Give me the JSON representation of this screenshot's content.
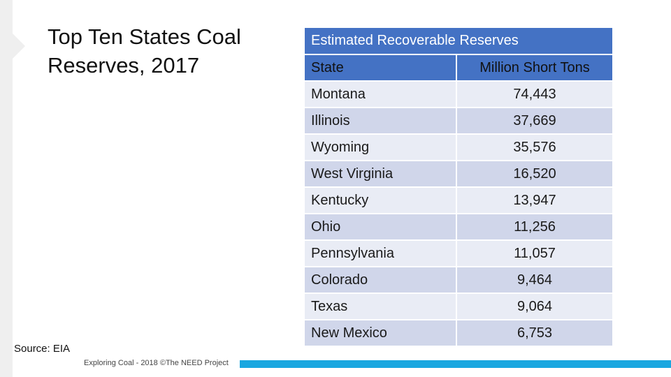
{
  "slide": {
    "title": "Top Ten States Coal Reserves, 2017",
    "source": "Source:  EIA",
    "footer": "Exploring Coal - 2018 ©The NEED Project"
  },
  "table": {
    "caption": "Estimated Recoverable Reserves",
    "columns": [
      "State",
      "Million Short Tons"
    ],
    "rows": [
      [
        "Montana",
        "74,443"
      ],
      [
        "Illinois",
        "37,669"
      ],
      [
        "Wyoming",
        "35,576"
      ],
      [
        "West Virginia",
        "16,520"
      ],
      [
        "Kentucky",
        "13,947"
      ],
      [
        "Ohio",
        "11,256"
      ],
      [
        "Pennsylvania",
        "11,057"
      ],
      [
        "Colorado",
        "9,464"
      ],
      [
        "Texas",
        "9,064"
      ],
      [
        "New Mexico",
        "6,753"
      ]
    ]
  },
  "colors": {
    "header": "#4472c4",
    "row_light": "#e9ecf5",
    "row_dark": "#d0d6ea",
    "footer_bar": "#1aa7e0"
  }
}
